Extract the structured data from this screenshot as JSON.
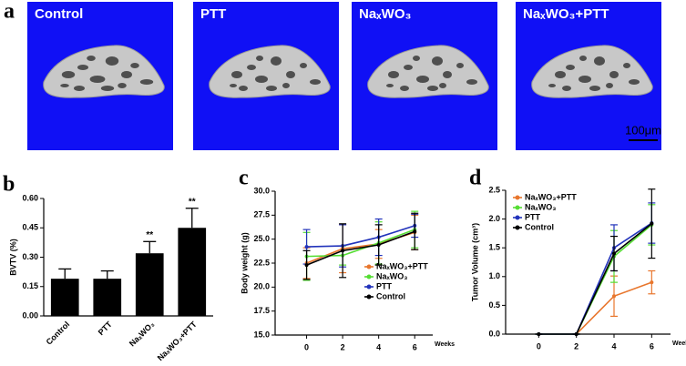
{
  "images": {
    "panel_label": "a",
    "tiles": [
      "Control",
      "PTT",
      "NaₓWO₃",
      "NaₓWO₃+PTT"
    ],
    "scale_bar": "100μm"
  },
  "chart_data": [
    {
      "type": "bar",
      "panel_label": "b",
      "y_label": "BVTV (%)",
      "categories": [
        "Control",
        "PTT",
        "NaₓWO₃",
        "NaₓWO₃+PTT"
      ],
      "values": [
        0.19,
        0.19,
        0.32,
        0.45
      ],
      "errors": [
        0.05,
        0.04,
        0.06,
        0.1
      ],
      "significance": [
        null,
        null,
        "**",
        "**"
      ],
      "color": "#000000",
      "ylim": [
        0,
        0.6
      ],
      "yticks": [
        {
          "value": 0,
          "label": "0.00"
        },
        {
          "value": 0.15,
          "label": "0.15"
        },
        {
          "value": 0.3,
          "label": "0.30"
        },
        {
          "value": 0.45,
          "label": "0.45"
        },
        {
          "value": 0.6,
          "label": "0.60"
        }
      ]
    },
    {
      "type": "line",
      "panel_label": "c",
      "y_label": "Body weight (g)",
      "x_label": "Weeks",
      "x": [
        0,
        2,
        4,
        6
      ],
      "xlim": [
        -2,
        7
      ],
      "xticks": [
        0,
        2,
        4,
        6
      ],
      "ylim": [
        15,
        30
      ],
      "yticks": [
        {
          "value": 15,
          "label": "15.0"
        },
        {
          "value": 17.5,
          "label": "17.5"
        },
        {
          "value": 20,
          "label": "20.0"
        },
        {
          "value": 22.5,
          "label": "22.5"
        },
        {
          "value": 25,
          "label": "25.0"
        },
        {
          "value": 27.5,
          "label": "27.5"
        },
        {
          "value": 30,
          "label": "30.0"
        }
      ],
      "legend_position": "lower right",
      "series": [
        {
          "name": "NaₓWO₃+PTT",
          "color": "#e8762d",
          "values": [
            22.5,
            24.0,
            24.5,
            25.7
          ],
          "errors": [
            1.6,
            2.5,
            1.5,
            1.8
          ]
        },
        {
          "name": "NaₓWO₃",
          "color": "#55dd33",
          "values": [
            23.2,
            23.3,
            24.6,
            26.0
          ],
          "errors": [
            2.5,
            1.0,
            2.2,
            1.9
          ]
        },
        {
          "name": "PTT",
          "color": "#2233bb",
          "values": [
            24.2,
            24.3,
            25.2,
            26.4
          ],
          "errors": [
            1.8,
            2.2,
            1.9,
            1.2
          ]
        },
        {
          "name": "Control",
          "color": "#000000",
          "values": [
            22.3,
            23.8,
            24.4,
            25.8
          ],
          "errors": [
            1.5,
            2.8,
            2.1,
            1.9
          ]
        }
      ]
    },
    {
      "type": "line",
      "panel_label": "d",
      "y_label": "Tumor Volume (cm³)",
      "x_label": "Weeks",
      "x": [
        0,
        2,
        4,
        6
      ],
      "xlim": [
        -2,
        7
      ],
      "xticks": [
        0,
        2,
        4,
        6
      ],
      "ylim": [
        0,
        2.5
      ],
      "yticks": [
        {
          "value": 0,
          "label": "0.0"
        },
        {
          "value": 0.5,
          "label": "0.5"
        },
        {
          "value": 1,
          "label": "1.0"
        },
        {
          "value": 1.5,
          "label": "1.5"
        },
        {
          "value": 2,
          "label": "2.0"
        },
        {
          "value": 2.5,
          "label": "2.5"
        }
      ],
      "legend_position": "upper left",
      "series": [
        {
          "name": "NaₓWO₃+PTT",
          "color": "#e8762d",
          "values": [
            0,
            0,
            0.66,
            0.9
          ],
          "errors": [
            0,
            0,
            0.35,
            0.2
          ]
        },
        {
          "name": "NaₓWO₃",
          "color": "#55dd33",
          "values": [
            0,
            0,
            1.35,
            1.9
          ],
          "errors": [
            0,
            0,
            0.45,
            0.35
          ]
        },
        {
          "name": "PTT",
          "color": "#2233bb",
          "values": [
            0,
            0,
            1.5,
            1.93
          ],
          "errors": [
            0,
            0,
            0.4,
            0.35
          ]
        },
        {
          "name": "Control",
          "color": "#000000",
          "values": [
            0,
            0,
            1.4,
            1.92
          ],
          "errors": [
            0,
            0,
            0.3,
            0.6
          ]
        }
      ]
    }
  ]
}
